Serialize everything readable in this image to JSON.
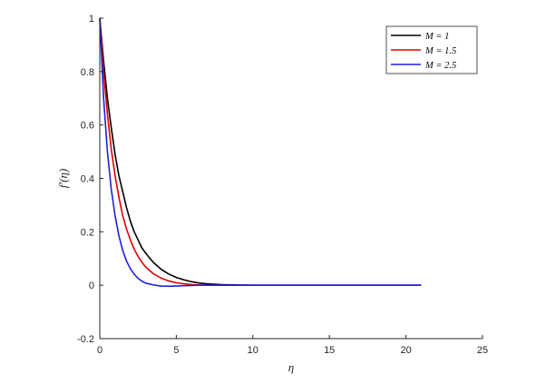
{
  "chart_data": {
    "type": "line",
    "title": "",
    "xlabel": "η",
    "ylabel": "f′(η)",
    "xlim": [
      0,
      25
    ],
    "ylim": [
      -0.2,
      1
    ],
    "xticks": [
      0,
      5,
      10,
      15,
      20,
      25
    ],
    "yticks": [
      -0.2,
      0,
      0.2,
      0.4,
      0.6,
      0.8,
      1
    ],
    "xtick_labels": [
      "0",
      "5",
      "10",
      "15",
      "20",
      "25"
    ],
    "ytick_labels": [
      "-0.2",
      "0",
      "0.2",
      "0.4",
      "0.6",
      "0.8",
      "1"
    ],
    "grid": false,
    "legend_position": "top-right",
    "series": [
      {
        "name": "M = 1",
        "color": "#000000",
        "x": [
          0,
          0.25,
          0.5,
          0.75,
          1,
          1.25,
          1.5,
          1.75,
          2,
          2.25,
          2.5,
          2.75,
          3,
          3.5,
          4,
          4.5,
          5,
          5.5,
          6,
          6.5,
          7,
          8,
          9,
          10,
          12,
          14,
          16,
          18,
          20,
          21
        ],
        "y": [
          1,
          0.84,
          0.7,
          0.59,
          0.49,
          0.41,
          0.35,
          0.29,
          0.24,
          0.2,
          0.17,
          0.14,
          0.12,
          0.085,
          0.06,
          0.042,
          0.029,
          0.02,
          0.013,
          0.008,
          0.005,
          0.002,
          0.001,
          0,
          0,
          0,
          0,
          0,
          0,
          0
        ]
      },
      {
        "name": "M = 1.5",
        "color": "#e00000",
        "x": [
          0,
          0.25,
          0.5,
          0.75,
          1,
          1.25,
          1.5,
          1.75,
          2,
          2.25,
          2.5,
          2.75,
          3,
          3.5,
          4,
          4.5,
          5,
          5.5,
          6,
          6.5,
          7,
          8,
          9,
          10,
          12,
          14,
          16,
          18,
          20,
          21
        ],
        "y": [
          1,
          0.8,
          0.64,
          0.51,
          0.41,
          0.33,
          0.26,
          0.21,
          0.17,
          0.135,
          0.108,
          0.086,
          0.068,
          0.043,
          0.027,
          0.016,
          0.009,
          0.005,
          0.002,
          0.001,
          0,
          0,
          0,
          0,
          0,
          0,
          0,
          0,
          0,
          0
        ]
      },
      {
        "name": "M = 2.5",
        "color": "#1f1fe0",
        "x": [
          0,
          0.25,
          0.5,
          0.75,
          1,
          1.25,
          1.5,
          1.75,
          2,
          2.25,
          2.5,
          2.75,
          3,
          3.5,
          4,
          4.5,
          5,
          5.5,
          6,
          6.5,
          7,
          8,
          9,
          10,
          12,
          14,
          16,
          18,
          20,
          21
        ],
        "y": [
          1,
          0.7,
          0.5,
          0.36,
          0.26,
          0.185,
          0.13,
          0.09,
          0.062,
          0.041,
          0.026,
          0.015,
          0.008,
          0.001,
          -0.003,
          -0.004,
          -0.003,
          -0.002,
          -0.001,
          0,
          0,
          0,
          0,
          0,
          0,
          0,
          0,
          0,
          0,
          0
        ]
      }
    ]
  }
}
